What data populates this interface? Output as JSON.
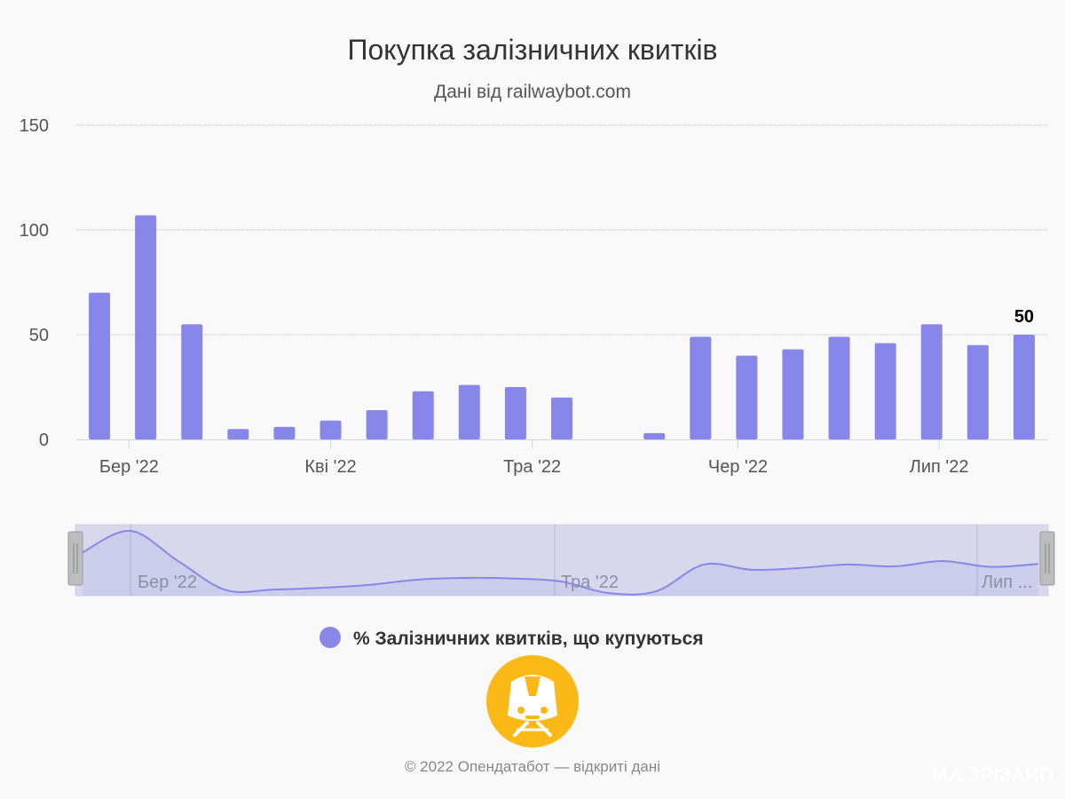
{
  "title": "Покупка залізничних квитків",
  "subtitle": "Дані від railwaybot.com",
  "legend": {
    "label": "% Залізничних квитків, що купуються",
    "color": "#8787ea"
  },
  "credit": "© 2022 Опендатабот — відкриті дані",
  "watermark": "МА ЗРІЗАНО",
  "navigator": {
    "labels": [
      "Бер '22",
      "Тра '22",
      "Лип ..."
    ]
  },
  "logo": {
    "name": "train-logo-icon",
    "color": "#fbb917"
  },
  "chart_data": {
    "type": "bar",
    "title": "Покупка залізничних квитків",
    "subtitle": "Дані від railwaybot.com",
    "xlabel": "",
    "ylabel": "",
    "ylim": [
      0,
      150
    ],
    "yticks": [
      0,
      50,
      100,
      150
    ],
    "xticks": [
      "Бер '22",
      "Кві '22",
      "Тра '22",
      "Чер '22",
      "Лип '22"
    ],
    "grid": true,
    "legend_position": "bottom",
    "series": [
      {
        "name": "% Залізничних квитків, що купуються",
        "color": "#8787ea",
        "values": [
          70,
          107,
          55,
          5,
          6,
          9,
          14,
          23,
          26,
          25,
          20,
          0,
          3,
          49,
          40,
          43,
          49,
          46,
          55,
          45,
          50
        ]
      }
    ],
    "data_labels": [
      {
        "index": 20,
        "text": "50"
      }
    ]
  }
}
